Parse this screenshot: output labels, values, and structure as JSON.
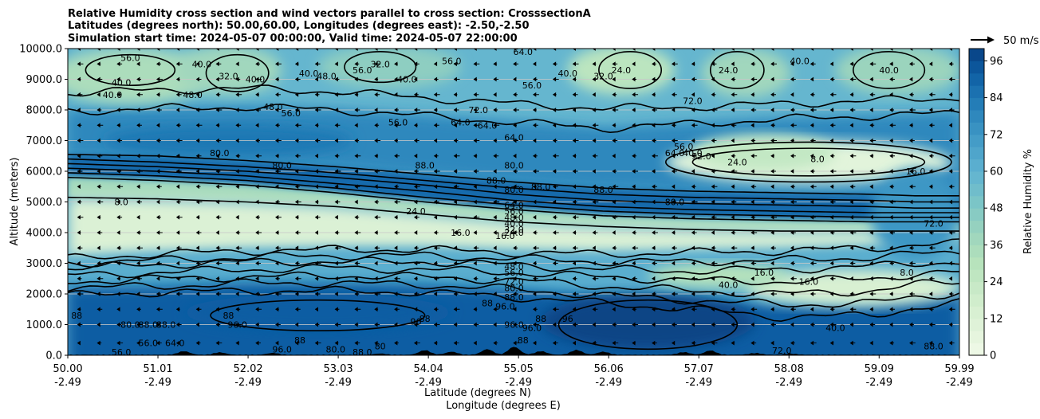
{
  "chart_data": {
    "type": "contour",
    "title_lines": [
      "Relative Humidity cross section and wind vectors parallel to cross section: CrosssectionA",
      "Latitudes (degrees north): 50.00,60.00, Longitudes (degrees east): -2.50,-2.50",
      "Simulation start time: 2024-05-07 00:00:00, Valid time: 2024-05-07 22:00:00"
    ],
    "ylabel": "Altitude (meters)",
    "xlabel_lines": [
      "Latitude (degrees N)",
      "Longitude (degrees E)"
    ],
    "y_ticks": [
      "0.0",
      "1000.0",
      "2000.0",
      "3000.0",
      "4000.0",
      "5000.0",
      "6000.0",
      "7000.0",
      "8000.0",
      "9000.0",
      "10000.0"
    ],
    "ylim": [
      0,
      10000
    ],
    "x_ticks": [
      {
        "lat": "50.00",
        "lon": "-2.49"
      },
      {
        "lat": "51.01",
        "lon": "-2.49"
      },
      {
        "lat": "52.02",
        "lon": "-2.49"
      },
      {
        "lat": "53.03",
        "lon": "-2.49"
      },
      {
        "lat": "54.04",
        "lon": "-2.49"
      },
      {
        "lat": "55.05",
        "lon": "-2.49"
      },
      {
        "lat": "56.06",
        "lon": "-2.49"
      },
      {
        "lat": "57.07",
        "lon": "-2.49"
      },
      {
        "lat": "58.08",
        "lon": "-2.49"
      },
      {
        "lat": "59.09",
        "lon": "-2.49"
      },
      {
        "lat": "59.99",
        "lon": "-2.49"
      }
    ],
    "xlim": [
      50.0,
      59.99
    ],
    "grid": "horizontal",
    "colorbar": {
      "label": "Relative Humidity %",
      "ticks": [
        "0",
        "12",
        "24",
        "36",
        "48",
        "60",
        "72",
        "84",
        "96"
      ],
      "levels": [
        0,
        4,
        8,
        12,
        16,
        20,
        24,
        28,
        32,
        36,
        40,
        44,
        48,
        52,
        56,
        60,
        64,
        68,
        72,
        76,
        80,
        84,
        88,
        92,
        96,
        100
      ],
      "colormap": "GnBu",
      "low_color": "#f0f9e8",
      "high_color": "#084081"
    },
    "quiver_key": "50 m/s",
    "contour_labels": [
      {
        "text": "56.0",
        "lat": 50.7,
        "z": 9700
      },
      {
        "text": "40.0",
        "lat": 50.6,
        "z": 8900
      },
      {
        "text": "40.0",
        "lat": 50.5,
        "z": 8500
      },
      {
        "text": "48.0",
        "lat": 51.4,
        "z": 8500
      },
      {
        "text": "40.0",
        "lat": 51.5,
        "z": 9500
      },
      {
        "text": "32.0",
        "lat": 51.8,
        "z": 9100
      },
      {
        "text": "40.0",
        "lat": 52.1,
        "z": 9000
      },
      {
        "text": "48.0",
        "lat": 52.3,
        "z": 8100
      },
      {
        "text": "56.0",
        "lat": 52.5,
        "z": 7900
      },
      {
        "text": "40.0",
        "lat": 52.7,
        "z": 9200
      },
      {
        "text": "48.0",
        "lat": 52.9,
        "z": 9100
      },
      {
        "text": "56.0",
        "lat": 53.3,
        "z": 9300
      },
      {
        "text": "32.0",
        "lat": 53.5,
        "z": 9500
      },
      {
        "text": "40.0",
        "lat": 53.8,
        "z": 9000
      },
      {
        "text": "56.0",
        "lat": 54.3,
        "z": 9600
      },
      {
        "text": "56.0",
        "lat": 53.7,
        "z": 7600
      },
      {
        "text": "72.0",
        "lat": 54.6,
        "z": 8000
      },
      {
        "text": "64.0",
        "lat": 54.4,
        "z": 7600
      },
      {
        "text": "64.0",
        "lat": 54.7,
        "z": 7500
      },
      {
        "text": "64.0",
        "lat": 55.0,
        "z": 7100
      },
      {
        "text": "56.0",
        "lat": 55.2,
        "z": 8800
      },
      {
        "text": "64.0",
        "lat": 55.1,
        "z": 9900
      },
      {
        "text": "40.0",
        "lat": 55.6,
        "z": 9200
      },
      {
        "text": "24.0",
        "lat": 56.2,
        "z": 9300
      },
      {
        "text": "32.0",
        "lat": 56.0,
        "z": 9100
      },
      {
        "text": "72.0",
        "lat": 57.0,
        "z": 8300
      },
      {
        "text": "64.0",
        "lat": 56.8,
        "z": 6600
      },
      {
        "text": "56.0",
        "lat": 56.9,
        "z": 6800
      },
      {
        "text": "40.0",
        "lat": 57.0,
        "z": 6600
      },
      {
        "text": "32.0",
        "lat": 57.1,
        "z": 6500
      },
      {
        "text": "24.0",
        "lat": 57.5,
        "z": 6300
      },
      {
        "text": "8.0",
        "lat": 58.4,
        "z": 6400
      },
      {
        "text": "24.0",
        "lat": 57.4,
        "z": 9300
      },
      {
        "text": "40.0",
        "lat": 58.2,
        "z": 9600
      },
      {
        "text": "40.0",
        "lat": 59.2,
        "z": 9300
      },
      {
        "text": "16.0",
        "lat": 59.5,
        "z": 6000
      },
      {
        "text": "72.0",
        "lat": 59.7,
        "z": 4300
      },
      {
        "text": "80.0",
        "lat": 51.7,
        "z": 6600
      },
      {
        "text": "80.0",
        "lat": 52.4,
        "z": 6200
      },
      {
        "text": "88.0",
        "lat": 54.0,
        "z": 6200
      },
      {
        "text": "80.0",
        "lat": 55.0,
        "z": 6200
      },
      {
        "text": "88.0",
        "lat": 54.8,
        "z": 5700
      },
      {
        "text": "88.0",
        "lat": 55.3,
        "z": 5500
      },
      {
        "text": "80.0",
        "lat": 55.0,
        "z": 5400
      },
      {
        "text": "88.0",
        "lat": 56.0,
        "z": 5400
      },
      {
        "text": "80.0",
        "lat": 56.8,
        "z": 5000
      },
      {
        "text": "64.0",
        "lat": 55.0,
        "z": 4900
      },
      {
        "text": "56.0",
        "lat": 55.0,
        "z": 4700
      },
      {
        "text": "48.0",
        "lat": 55.0,
        "z": 4500
      },
      {
        "text": "40.0",
        "lat": 55.0,
        "z": 4300
      },
      {
        "text": "32.0",
        "lat": 55.0,
        "z": 4100
      },
      {
        "text": "24.0",
        "lat": 55.0,
        "z": 4000
      },
      {
        "text": "24.0",
        "lat": 53.9,
        "z": 4700
      },
      {
        "text": "16.0",
        "lat": 54.4,
        "z": 4000
      },
      {
        "text": "16.0",
        "lat": 54.9,
        "z": 3900
      },
      {
        "text": "8.0",
        "lat": 50.6,
        "z": 5000
      },
      {
        "text": "48.0",
        "lat": 55.0,
        "z": 2900
      },
      {
        "text": "56.0",
        "lat": 55.0,
        "z": 2700
      },
      {
        "text": "72.0",
        "lat": 55.0,
        "z": 2400
      },
      {
        "text": "80.0",
        "lat": 55.0,
        "z": 2200
      },
      {
        "text": "88.0",
        "lat": 55.0,
        "z": 1900
      },
      {
        "text": "96.0",
        "lat": 54.9,
        "z": 1600
      },
      {
        "text": "88",
        "lat": 54.7,
        "z": 1700
      },
      {
        "text": "40.0",
        "lat": 57.4,
        "z": 2300
      },
      {
        "text": "16.0",
        "lat": 57.8,
        "z": 2700
      },
      {
        "text": "16.0",
        "lat": 58.3,
        "z": 2400
      },
      {
        "text": "8.0",
        "lat": 59.4,
        "z": 2700
      },
      {
        "text": "40.0",
        "lat": 58.6,
        "z": 900
      },
      {
        "text": "72.0",
        "lat": 58.0,
        "z": 150
      },
      {
        "text": "88.0",
        "lat": 59.7,
        "z": 300
      },
      {
        "text": "80.0",
        "lat": 50.7,
        "z": 1000
      },
      {
        "text": "88.0",
        "lat": 50.9,
        "z": 1000
      },
      {
        "text": "88.0",
        "lat": 51.1,
        "z": 1000
      },
      {
        "text": "88",
        "lat": 50.1,
        "z": 1300
      },
      {
        "text": "88",
        "lat": 51.8,
        "z": 1300
      },
      {
        "text": "96.0",
        "lat": 51.9,
        "z": 1000
      },
      {
        "text": "56.0",
        "lat": 50.9,
        "z": 400
      },
      {
        "text": "64.0",
        "lat": 51.2,
        "z": 400
      },
      {
        "text": "56.0",
        "lat": 50.6,
        "z": 100
      },
      {
        "text": "96.0",
        "lat": 52.4,
        "z": 200
      },
      {
        "text": "88",
        "lat": 52.6,
        "z": 500
      },
      {
        "text": "80.0",
        "lat": 53.0,
        "z": 200
      },
      {
        "text": "88.0",
        "lat": 53.3,
        "z": 100
      },
      {
        "text": "80",
        "lat": 53.5,
        "z": 300
      },
      {
        "text": "88",
        "lat": 54.0,
        "z": 1200
      },
      {
        "text": "96",
        "lat": 53.9,
        "z": 1100
      },
      {
        "text": "88",
        "lat": 55.3,
        "z": 1200
      },
      {
        "text": "96",
        "lat": 55.6,
        "z": 1200
      },
      {
        "text": "96.0",
        "lat": 55.0,
        "z": 1000
      },
      {
        "text": "96.0",
        "lat": 55.2,
        "z": 900
      },
      {
        "text": "88",
        "lat": 55.1,
        "z": 500
      }
    ],
    "contours": [
      {
        "z": [
          6550,
          6500,
          6350,
          6150,
          5900,
          5650,
          5450,
          5350,
          5300,
          5250,
          5200,
          5200
        ]
      },
      {
        "z": [
          6400,
          6300,
          6150,
          5950,
          5700,
          5450,
          5250,
          5150,
          5100,
          5050,
          5000,
          5000
        ]
      },
      {
        "z": [
          6250,
          6150,
          6000,
          5800,
          5550,
          5250,
          5050,
          4950,
          4900,
          4850,
          4800,
          4800
        ]
      },
      {
        "z": [
          6100,
          6000,
          5850,
          5600,
          5350,
          5050,
          4850,
          4750,
          4700,
          4650,
          4650,
          4650
        ]
      },
      {
        "z": [
          5950,
          5850,
          5700,
          5450,
          5150,
          4900,
          4700,
          4600,
          4550,
          4500,
          4500,
          4500
        ]
      },
      {
        "z": [
          5800,
          5700,
          5550,
          5300,
          5000,
          4750,
          4550,
          4450,
          4400,
          4350,
          4350,
          4350
        ]
      },
      {
        "z": [
          5150,
          5100,
          5000,
          4850,
          4600,
          4350,
          4200,
          4100,
          4050,
          4050,
          4050,
          4050
        ]
      },
      {
        "z": [
          3150,
          3300,
          3400,
          3450,
          3450,
          3350,
          3300,
          3350,
          3400,
          3500,
          3600,
          3650
        ]
      },
      {
        "z": [
          3000,
          3100,
          3200,
          3250,
          3250,
          3150,
          3050,
          3050,
          3100,
          3200,
          3300,
          3350
        ]
      },
      {
        "z": [
          2850,
          2950,
          3050,
          3050,
          3050,
          2950,
          2800,
          2750,
          2800,
          2900,
          3000,
          3050
        ]
      },
      {
        "z": [
          2600,
          2700,
          2800,
          2850,
          2800,
          2700,
          2550,
          2450,
          2400,
          2500,
          2650,
          2700
        ]
      },
      {
        "z": [
          2400,
          2500,
          2550,
          2600,
          2550,
          2450,
          2250,
          2100,
          2000,
          2100,
          2300,
          2400
        ]
      },
      {
        "z": [
          2200,
          2250,
          2350,
          2350,
          2300,
          2150,
          1950,
          1800,
          1650,
          1700,
          1900,
          2050
        ]
      },
      {
        "z": [
          1950,
          2050,
          2100,
          2100,
          2050,
          1900,
          1700,
          1500,
          1250,
          1300,
          1550,
          1700
        ]
      },
      {
        "z": [
          7950,
          8050,
          8100,
          8000,
          7800,
          7600,
          7400,
          7550,
          7700,
          7800,
          7850,
          7900
        ]
      },
      {
        "z": [
          8550,
          8650,
          8700,
          8600,
          8400,
          8200,
          8050,
          8100,
          8200,
          8300,
          8350,
          8400
        ]
      }
    ],
    "wind_row_altitudes": [
      400,
      1000,
      1500,
      2000,
      2500,
      3000,
      3500,
      4000,
      4500,
      5000,
      5500,
      6000,
      6500,
      7000,
      7500,
      8000,
      8500,
      9000,
      9500,
      10000
    ],
    "wind_columns": 45
  }
}
